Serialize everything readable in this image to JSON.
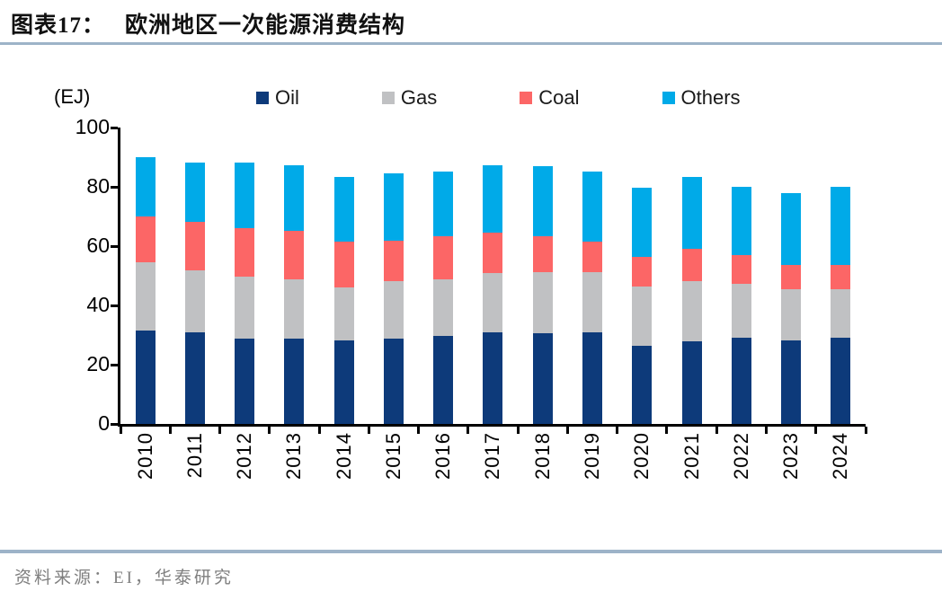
{
  "header": {
    "exhibit_label": "图表17：",
    "title": "欧洲地区一次能源消费结构"
  },
  "chart_data": {
    "type": "bar",
    "stacked": true,
    "title": "欧洲地区一次能源消费结构",
    "unit_label": "(EJ)",
    "categories": [
      "2010",
      "2011",
      "2012",
      "2013",
      "2014",
      "2015",
      "2016",
      "2017",
      "2018",
      "2019",
      "2020",
      "2021",
      "2022",
      "2023",
      "2024"
    ],
    "series": [
      {
        "name": "Oil",
        "color": "#0D3A7A",
        "values": [
          31.6,
          30.8,
          28.8,
          28.9,
          28.2,
          28.9,
          29.7,
          30.8,
          30.6,
          30.8,
          26.3,
          27.8,
          29.0,
          28.1,
          29.0
        ]
      },
      {
        "name": "Gas",
        "color": "#C0C1C3",
        "values": [
          22.9,
          20.9,
          20.9,
          19.8,
          18.0,
          19.3,
          19.0,
          20.2,
          20.5,
          20.3,
          20.1,
          20.4,
          18.4,
          17.4,
          16.5
        ]
      },
      {
        "name": "Coal",
        "color": "#FC6666",
        "values": [
          15.4,
          16.4,
          16.3,
          16.6,
          15.4,
          13.7,
          14.7,
          13.7,
          12.3,
          10.5,
          9.9,
          10.8,
          9.7,
          8.0,
          8.0
        ]
      },
      {
        "name": "Others",
        "color": "#00AAE8",
        "values": [
          20.0,
          20.1,
          22.1,
          21.9,
          21.8,
          22.7,
          21.9,
          22.7,
          23.6,
          23.6,
          23.5,
          24.4,
          22.8,
          24.4,
          26.4
        ]
      }
    ],
    "totals": [
      89.9,
      88.2,
      88.1,
      87.2,
      83.4,
      84.6,
      85.3,
      87.4,
      87.0,
      85.2,
      79.8,
      83.4,
      79.9,
      77.9,
      79.9
    ],
    "ylim": [
      0,
      100
    ],
    "yticks": [
      0,
      20,
      40,
      60,
      80,
      100
    ],
    "legend_position": "top",
    "grid": false
  },
  "footer": {
    "source": "资料来源：EI，华泰研究"
  },
  "theme": {
    "rule_color": "#9DB3C8",
    "axis_color": "#000000",
    "title_color": "#111111",
    "source_color": "#7F7F7F"
  }
}
